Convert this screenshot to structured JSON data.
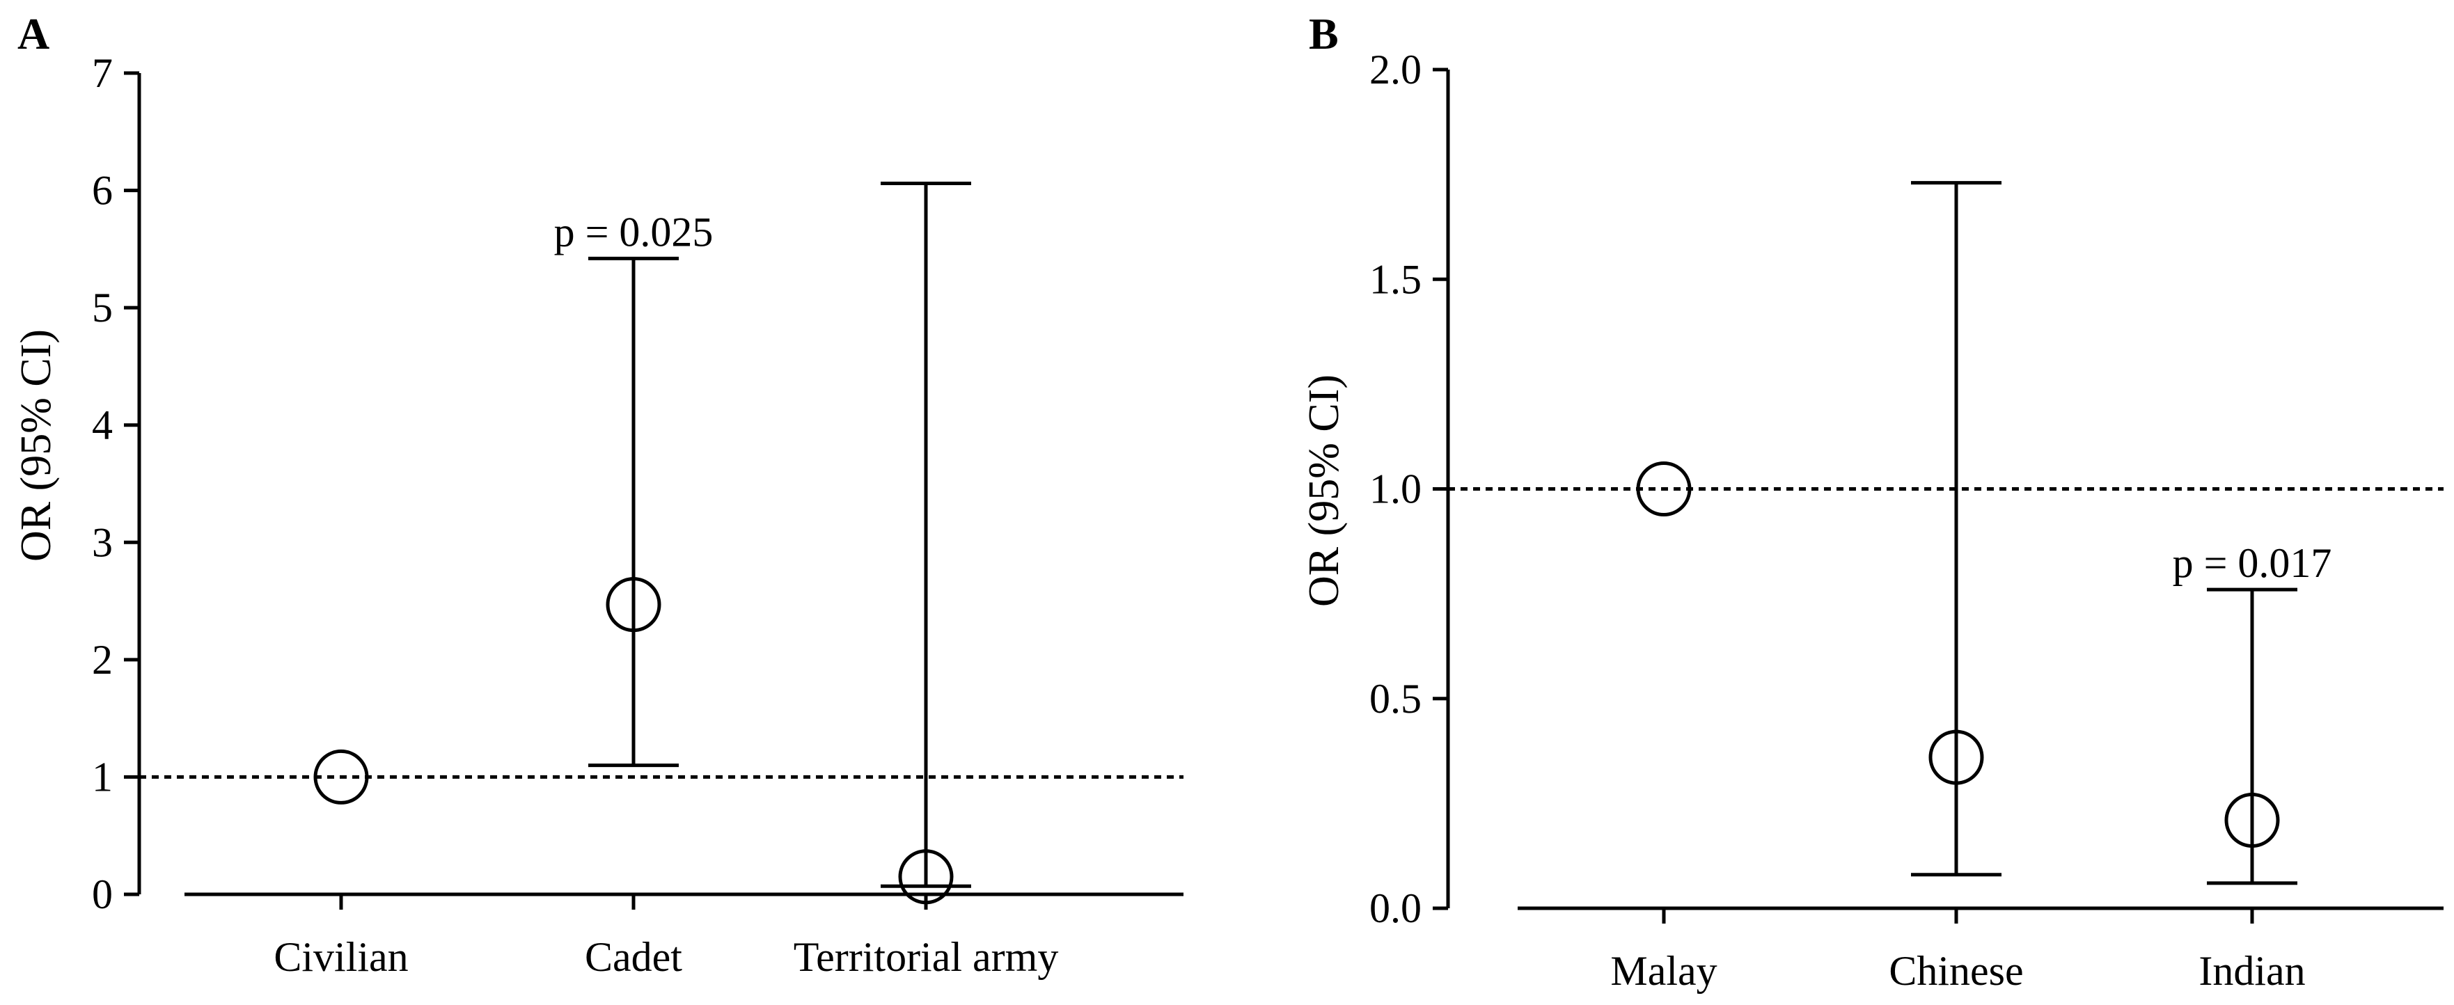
{
  "chart_data": [
    {
      "panel_label": "A",
      "type": "scatter",
      "ylabel": "OR (95% CI)",
      "xlabel": "",
      "ylim": [
        0,
        7
      ],
      "yticks": [
        "0",
        "1",
        "2",
        "3",
        "4",
        "5",
        "6",
        "7"
      ],
      "categories": [
        "Civilian",
        "Cadet",
        "Territorial army"
      ],
      "values": [
        1.0,
        2.47,
        0.15
      ],
      "ci_low": [
        null,
        1.1,
        0.07
      ],
      "ci_high": [
        null,
        5.42,
        6.06
      ],
      "reference_line": 1,
      "annotations": [
        {
          "text": "p = 0.025",
          "category": "Cadet"
        }
      ]
    },
    {
      "panel_label": "B",
      "type": "scatter",
      "ylabel": "OR (95% CI)",
      "xlabel": "",
      "ylim": [
        0,
        2
      ],
      "yticks": [
        "0.0",
        "0.5",
        "1.0",
        "1.5",
        "2.0"
      ],
      "categories": [
        "Malay",
        "Chinese",
        "Indian"
      ],
      "values": [
        1.0,
        0.36,
        0.21
      ],
      "ci_low": [
        null,
        0.08,
        0.06
      ],
      "ci_high": [
        null,
        1.73,
        0.76
      ],
      "reference_line": 1,
      "annotations": [
        {
          "text": "p = 0.017",
          "category": "Indian"
        }
      ]
    }
  ]
}
